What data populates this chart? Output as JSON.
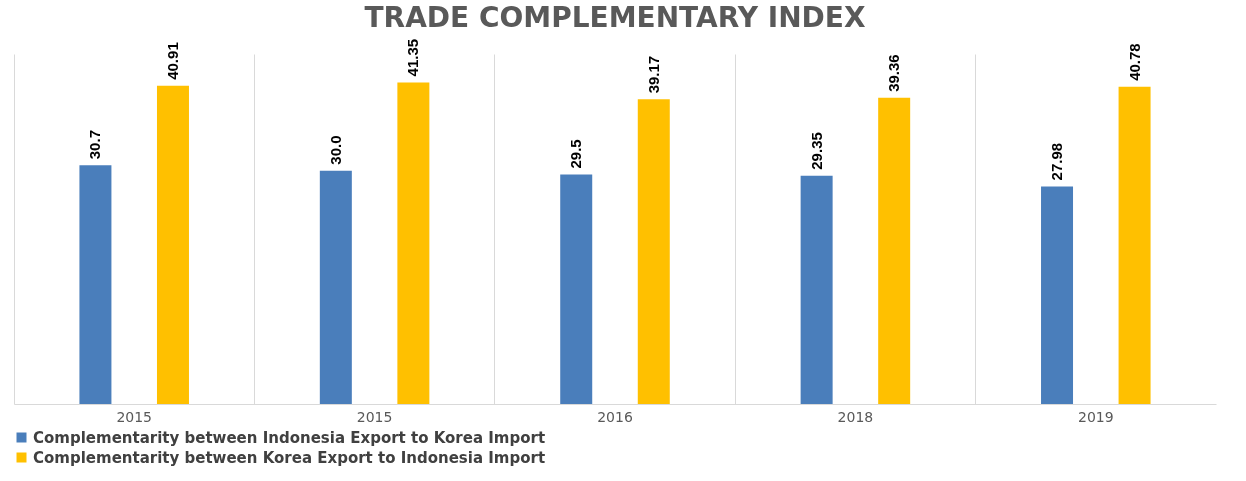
{
  "chart_data": {
    "type": "bar",
    "title": "TRADE COMPLEMENTARY INDEX",
    "categories": [
      "2015",
      "2015",
      "2016",
      "2018",
      "2019"
    ],
    "series": [
      {
        "name": "Complementarity between Indonesia Export to Korea Import",
        "color": "#4a7ebb",
        "values": [
          30.7,
          30.0,
          29.5,
          29.35,
          27.98
        ],
        "value_labels": [
          "30.7",
          "30.0",
          "29.5",
          "29.35",
          "27.98"
        ]
      },
      {
        "name": "Complementarity between Korea Export to Indonesia Import",
        "color": "#ffc000",
        "values": [
          40.91,
          41.35,
          39.17,
          39.36,
          40.78
        ],
        "value_labels": [
          "40.91",
          "41.35",
          "39.17",
          "39.36",
          "40.78"
        ]
      }
    ],
    "grid": "x",
    "legend": "bottom"
  }
}
